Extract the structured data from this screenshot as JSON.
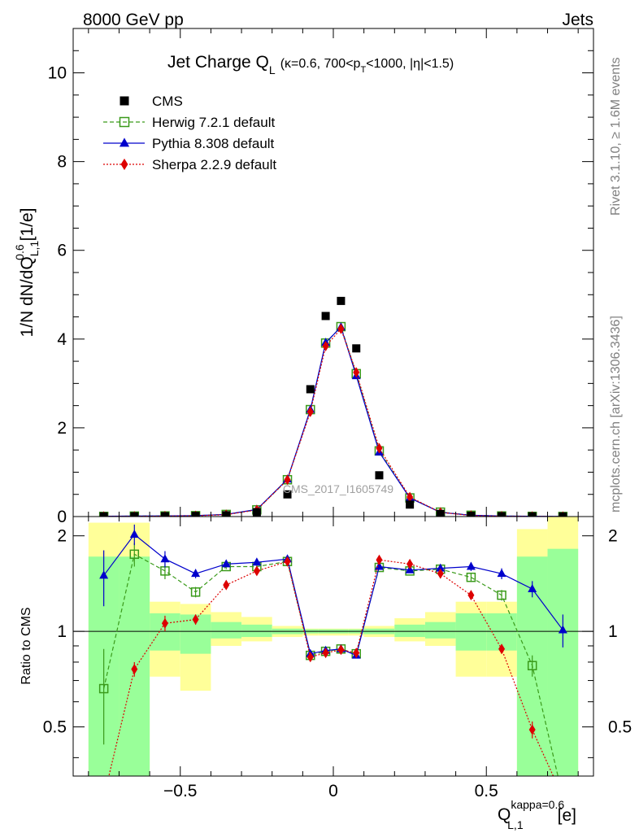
{
  "header": {
    "left": "8000 GeV pp",
    "right": "Jets"
  },
  "side_labels": {
    "rivet": "Rivet 3.1.10, ≥ 1.6M events",
    "mcplots": "mcplots.cern.ch [arXiv:1306.3436]"
  },
  "watermark": "CMS_2017_I1605749",
  "title": {
    "main": "Jet Charge Q",
    "main_sub": "L",
    "cond_a": "(κ=0.6, 700<p",
    "cond_sub": "T",
    "cond_b": "<1000, |η|<1.5)"
  },
  "axes": {
    "ylabel_main": "1/N dN/dQ",
    "ylabel_sup": "0.6",
    "ylabel_sub": "L,1",
    "ylabel_unit": "[1/e]",
    "ylabel_ratio": "Ratio to CMS",
    "xlabel": "Q",
    "xlabel_sup": "kappa=0.6",
    "xlabel_sub": "L,1",
    "xlabel_unit": "[e]"
  },
  "chart_data": {
    "type": "scatter",
    "x_range": [
      -0.85,
      0.85
    ],
    "main_y_range": [
      0,
      11
    ],
    "ratio_y_range": [
      0.35,
      2.3
    ],
    "main_y_ticks": [
      0,
      2,
      4,
      6,
      8,
      10
    ],
    "main_y_tick_labels": [
      "0",
      "2",
      "4",
      "6",
      "8",
      "10"
    ],
    "ratio_y_ticks": [
      0.5,
      1,
      2
    ],
    "ratio_y_tick_labels": [
      "0.5",
      "1",
      "2"
    ],
    "x_ticks": [
      -0.5,
      0,
      0.5
    ],
    "x_tick_labels": [
      "−0.5",
      "0",
      "0.5"
    ],
    "bins": [
      [
        -0.8,
        -0.7
      ],
      [
        -0.7,
        -0.6
      ],
      [
        -0.6,
        -0.5
      ],
      [
        -0.5,
        -0.4
      ],
      [
        -0.4,
        -0.3
      ],
      [
        -0.3,
        -0.2
      ],
      [
        -0.2,
        -0.1
      ],
      [
        -0.1,
        -0.05
      ],
      [
        -0.05,
        0
      ],
      [
        0,
        0.05
      ],
      [
        0.05,
        0.1
      ],
      [
        0.1,
        0.2
      ],
      [
        0.2,
        0.3
      ],
      [
        0.3,
        0.4
      ],
      [
        0.4,
        0.5
      ],
      [
        0.5,
        0.6
      ],
      [
        0.6,
        0.7
      ],
      [
        0.7,
        0.8
      ]
    ],
    "x": [
      -0.75,
      -0.65,
      -0.55,
      -0.45,
      -0.35,
      -0.25,
      -0.15,
      -0.075,
      -0.025,
      0.025,
      0.075,
      0.15,
      0.25,
      0.35,
      0.45,
      0.55,
      0.65,
      0.75
    ],
    "cms": [
      0.005,
      0.006,
      0.009,
      0.015,
      0.03,
      0.1,
      0.5,
      2.87,
      4.52,
      4.86,
      3.79,
      0.93,
      0.27,
      0.06,
      0.018,
      0.008,
      0.005,
      0.003
    ],
    "band_yellow": [
      [
        0.3,
        2.2
      ],
      [
        0.3,
        2.2
      ],
      [
        0.72,
        1.24
      ],
      [
        0.65,
        1.22
      ],
      [
        0.9,
        1.15
      ],
      [
        0.93,
        1.11
      ],
      [
        0.96,
        1.04
      ],
      [
        0.97,
        1.02
      ],
      [
        0.97,
        1.02
      ],
      [
        0.97,
        1.02
      ],
      [
        0.97,
        1.02
      ],
      [
        0.96,
        1.04
      ],
      [
        0.93,
        1.1
      ],
      [
        0.9,
        1.15
      ],
      [
        0.72,
        1.24
      ],
      [
        0.72,
        1.24
      ],
      [
        0.3,
        2.1
      ],
      [
        0.3,
        2.4
      ]
    ],
    "band_green": [
      [
        0.3,
        1.72
      ],
      [
        0.3,
        1.72
      ],
      [
        0.87,
        1.14
      ],
      [
        0.85,
        1.13
      ],
      [
        0.95,
        1.07
      ],
      [
        0.96,
        1.05
      ],
      [
        0.98,
        1.02
      ],
      [
        0.985,
        1.015
      ],
      [
        0.985,
        1.015
      ],
      [
        0.985,
        1.015
      ],
      [
        0.985,
        1.015
      ],
      [
        0.98,
        1.02
      ],
      [
        0.96,
        1.05
      ],
      [
        0.95,
        1.07
      ],
      [
        0.87,
        1.14
      ],
      [
        0.87,
        1.14
      ],
      [
        0.3,
        1.72
      ],
      [
        0.3,
        1.82
      ]
    ],
    "series": [
      {
        "name": "CMS",
        "kind": "data",
        "color": "#000000",
        "marker": "square-filled"
      },
      {
        "name": "Herwig 7.2.1 default",
        "kind": "mc",
        "color": "#3a9a1a",
        "marker": "square-open",
        "dash": "5,3",
        "values": [
          0.0033,
          0.0105,
          0.014,
          0.02,
          0.048,
          0.15,
          0.83,
          2.41,
          3.91,
          4.28,
          3.22,
          1.48,
          0.42,
          0.1,
          0.03,
          0.013,
          0.0039,
          0.0015
        ],
        "ratio": [
          0.66,
          1.75,
          1.55,
          1.33,
          1.6,
          1.6,
          1.66,
          0.84,
          0.865,
          0.88,
          0.85,
          1.59,
          1.55,
          1.57,
          1.48,
          1.3,
          0.78,
          0.3
        ],
        "ratio_err": [
          0.22,
          0.15,
          0.09,
          0.05,
          0.03,
          0.02,
          0.02,
          0.01,
          0.01,
          0.01,
          0.01,
          0.02,
          0.02,
          0.03,
          0.05,
          0.05,
          0.06,
          0.1
        ]
      },
      {
        "name": "Pythia 8.308 default",
        "kind": "mc",
        "color": "#0000cc",
        "marker": "triangle-filled",
        "dash": "",
        "values": [
          0.0075,
          0.012,
          0.015,
          0.022,
          0.048,
          0.16,
          0.84,
          2.41,
          3.92,
          4.27,
          3.17,
          1.45,
          0.42,
          0.095,
          0.03,
          0.012,
          0.0068,
          0.003
        ],
        "ratio": [
          1.5,
          2.02,
          1.69,
          1.52,
          1.63,
          1.65,
          1.69,
          0.85,
          0.87,
          0.88,
          0.84,
          1.6,
          1.56,
          1.58,
          1.6,
          1.52,
          1.36,
          1.01
        ],
        "ratio_err": [
          0.3,
          0.15,
          0.1,
          0.05,
          0.03,
          0.02,
          0.02,
          0.01,
          0.01,
          0.01,
          0.01,
          0.02,
          0.02,
          0.03,
          0.05,
          0.06,
          0.08,
          0.12
        ]
      },
      {
        "name": "Sherpa 2.2.9 default",
        "kind": "mc",
        "color": "#dd0000",
        "marker": "diamond-filled",
        "dash": "2,2",
        "values": [
          0.0015,
          0.0046,
          0.0095,
          0.017,
          0.042,
          0.15,
          0.83,
          2.36,
          3.84,
          4.23,
          3.25,
          1.54,
          0.44,
          0.095,
          0.022,
          0.007,
          0.0025,
          0.0007
        ],
        "ratio": [
          0.3,
          0.76,
          1.06,
          1.09,
          1.4,
          1.55,
          1.66,
          0.83,
          0.855,
          0.875,
          0.855,
          1.68,
          1.63,
          1.52,
          1.3,
          0.88,
          0.49,
          0.3
        ],
        "ratio_err": [
          0.05,
          0.04,
          0.06,
          0.04,
          0.02,
          0.02,
          0.02,
          0.01,
          0.01,
          0.01,
          0.01,
          0.02,
          0.02,
          0.03,
          0.04,
          0.03,
          0.03,
          0.03
        ]
      }
    ]
  }
}
